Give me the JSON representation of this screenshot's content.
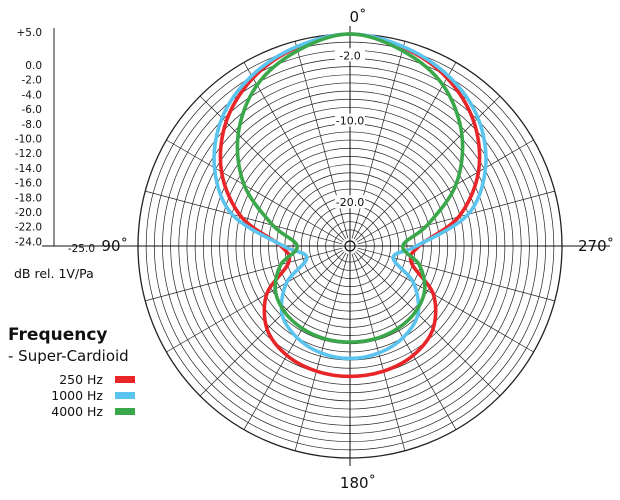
{
  "chart_data": {
    "type": "polar-line",
    "title": "Frequency",
    "subtitle": "- Super-Cardioid",
    "unit_label": "dB rel. 1V/Pa",
    "angle_labels": [
      {
        "deg": 0,
        "text": "0˚"
      },
      {
        "deg": 90,
        "text": "90˚"
      },
      {
        "deg": 180,
        "text": "180˚"
      },
      {
        "deg": 270,
        "text": "270˚"
      }
    ],
    "radial_range_db": [
      -25,
      0
    ],
    "ring_labels": [
      {
        "db": -2,
        "text": "-2.0"
      },
      {
        "db": -10,
        "text": "-10.0"
      },
      {
        "db": -20,
        "text": "-20.0"
      }
    ],
    "scale_ticks": [
      "+5.0",
      "0.0",
      "-2.0",
      "-4.0",
      "-6.0",
      "-8.0",
      "-10.0",
      "-12.0",
      "-14.0",
      "-16.0",
      "-18.0",
      "-20.0",
      "-22.0",
      "-24.0",
      "-25.0"
    ],
    "angles_deg": [
      0,
      15,
      30,
      45,
      60,
      75,
      90,
      105,
      120,
      135,
      150,
      165,
      180,
      195,
      210,
      225,
      240,
      255,
      270,
      285,
      300,
      315,
      330,
      345
    ],
    "series": [
      {
        "name": "250 Hz",
        "color": "#e8262a",
        "values_db": [
          0.0,
          -0.8,
          -2.2,
          -4.5,
          -7.8,
          -12.2,
          -17.5,
          -18.2,
          -14.2,
          -11.6,
          -10.5,
          -10.1,
          -10.0,
          -10.1,
          -10.5,
          -11.6,
          -14.2,
          -18.2,
          -17.5,
          -12.2,
          -7.8,
          -4.5,
          -2.2,
          -0.8
        ]
      },
      {
        "name": "1000 Hz",
        "color": "#5bc4ee",
        "values_db": [
          0.0,
          -0.7,
          -1.9,
          -3.8,
          -6.8,
          -11.0,
          -17.8,
          -20.5,
          -17.0,
          -14.2,
          -13.0,
          -12.4,
          -12.2,
          -12.4,
          -13.0,
          -14.2,
          -17.0,
          -20.5,
          -17.8,
          -11.0,
          -6.8,
          -3.8,
          -1.9,
          -0.7
        ]
      },
      {
        "name": "4000 Hz",
        "color": "#3aa84a",
        "values_db": [
          0.0,
          -1.2,
          -3.2,
          -6.6,
          -11.0,
          -16.2,
          -19.5,
          -17.2,
          -15.4,
          -14.6,
          -14.3,
          -14.2,
          -14.2,
          -14.2,
          -14.3,
          -14.6,
          -15.4,
          -17.2,
          -19.5,
          -16.2,
          -11.0,
          -6.6,
          -3.2,
          -1.2
        ]
      }
    ]
  }
}
